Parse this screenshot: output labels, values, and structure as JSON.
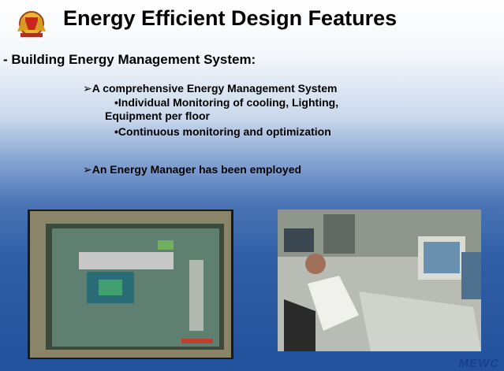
{
  "title": "Energy Efficient Design Features",
  "heading": "- Building Energy Management System:",
  "bullets": [
    {
      "text": "A comprehensive Energy Management System",
      "items": [
        "Individual Monitoring of cooling, Lighting, Equipment per floor",
        "Continuous monitoring and optimization"
      ]
    },
    {
      "text": "An Energy Manager has been employed"
    }
  ],
  "logo": "MEWC"
}
